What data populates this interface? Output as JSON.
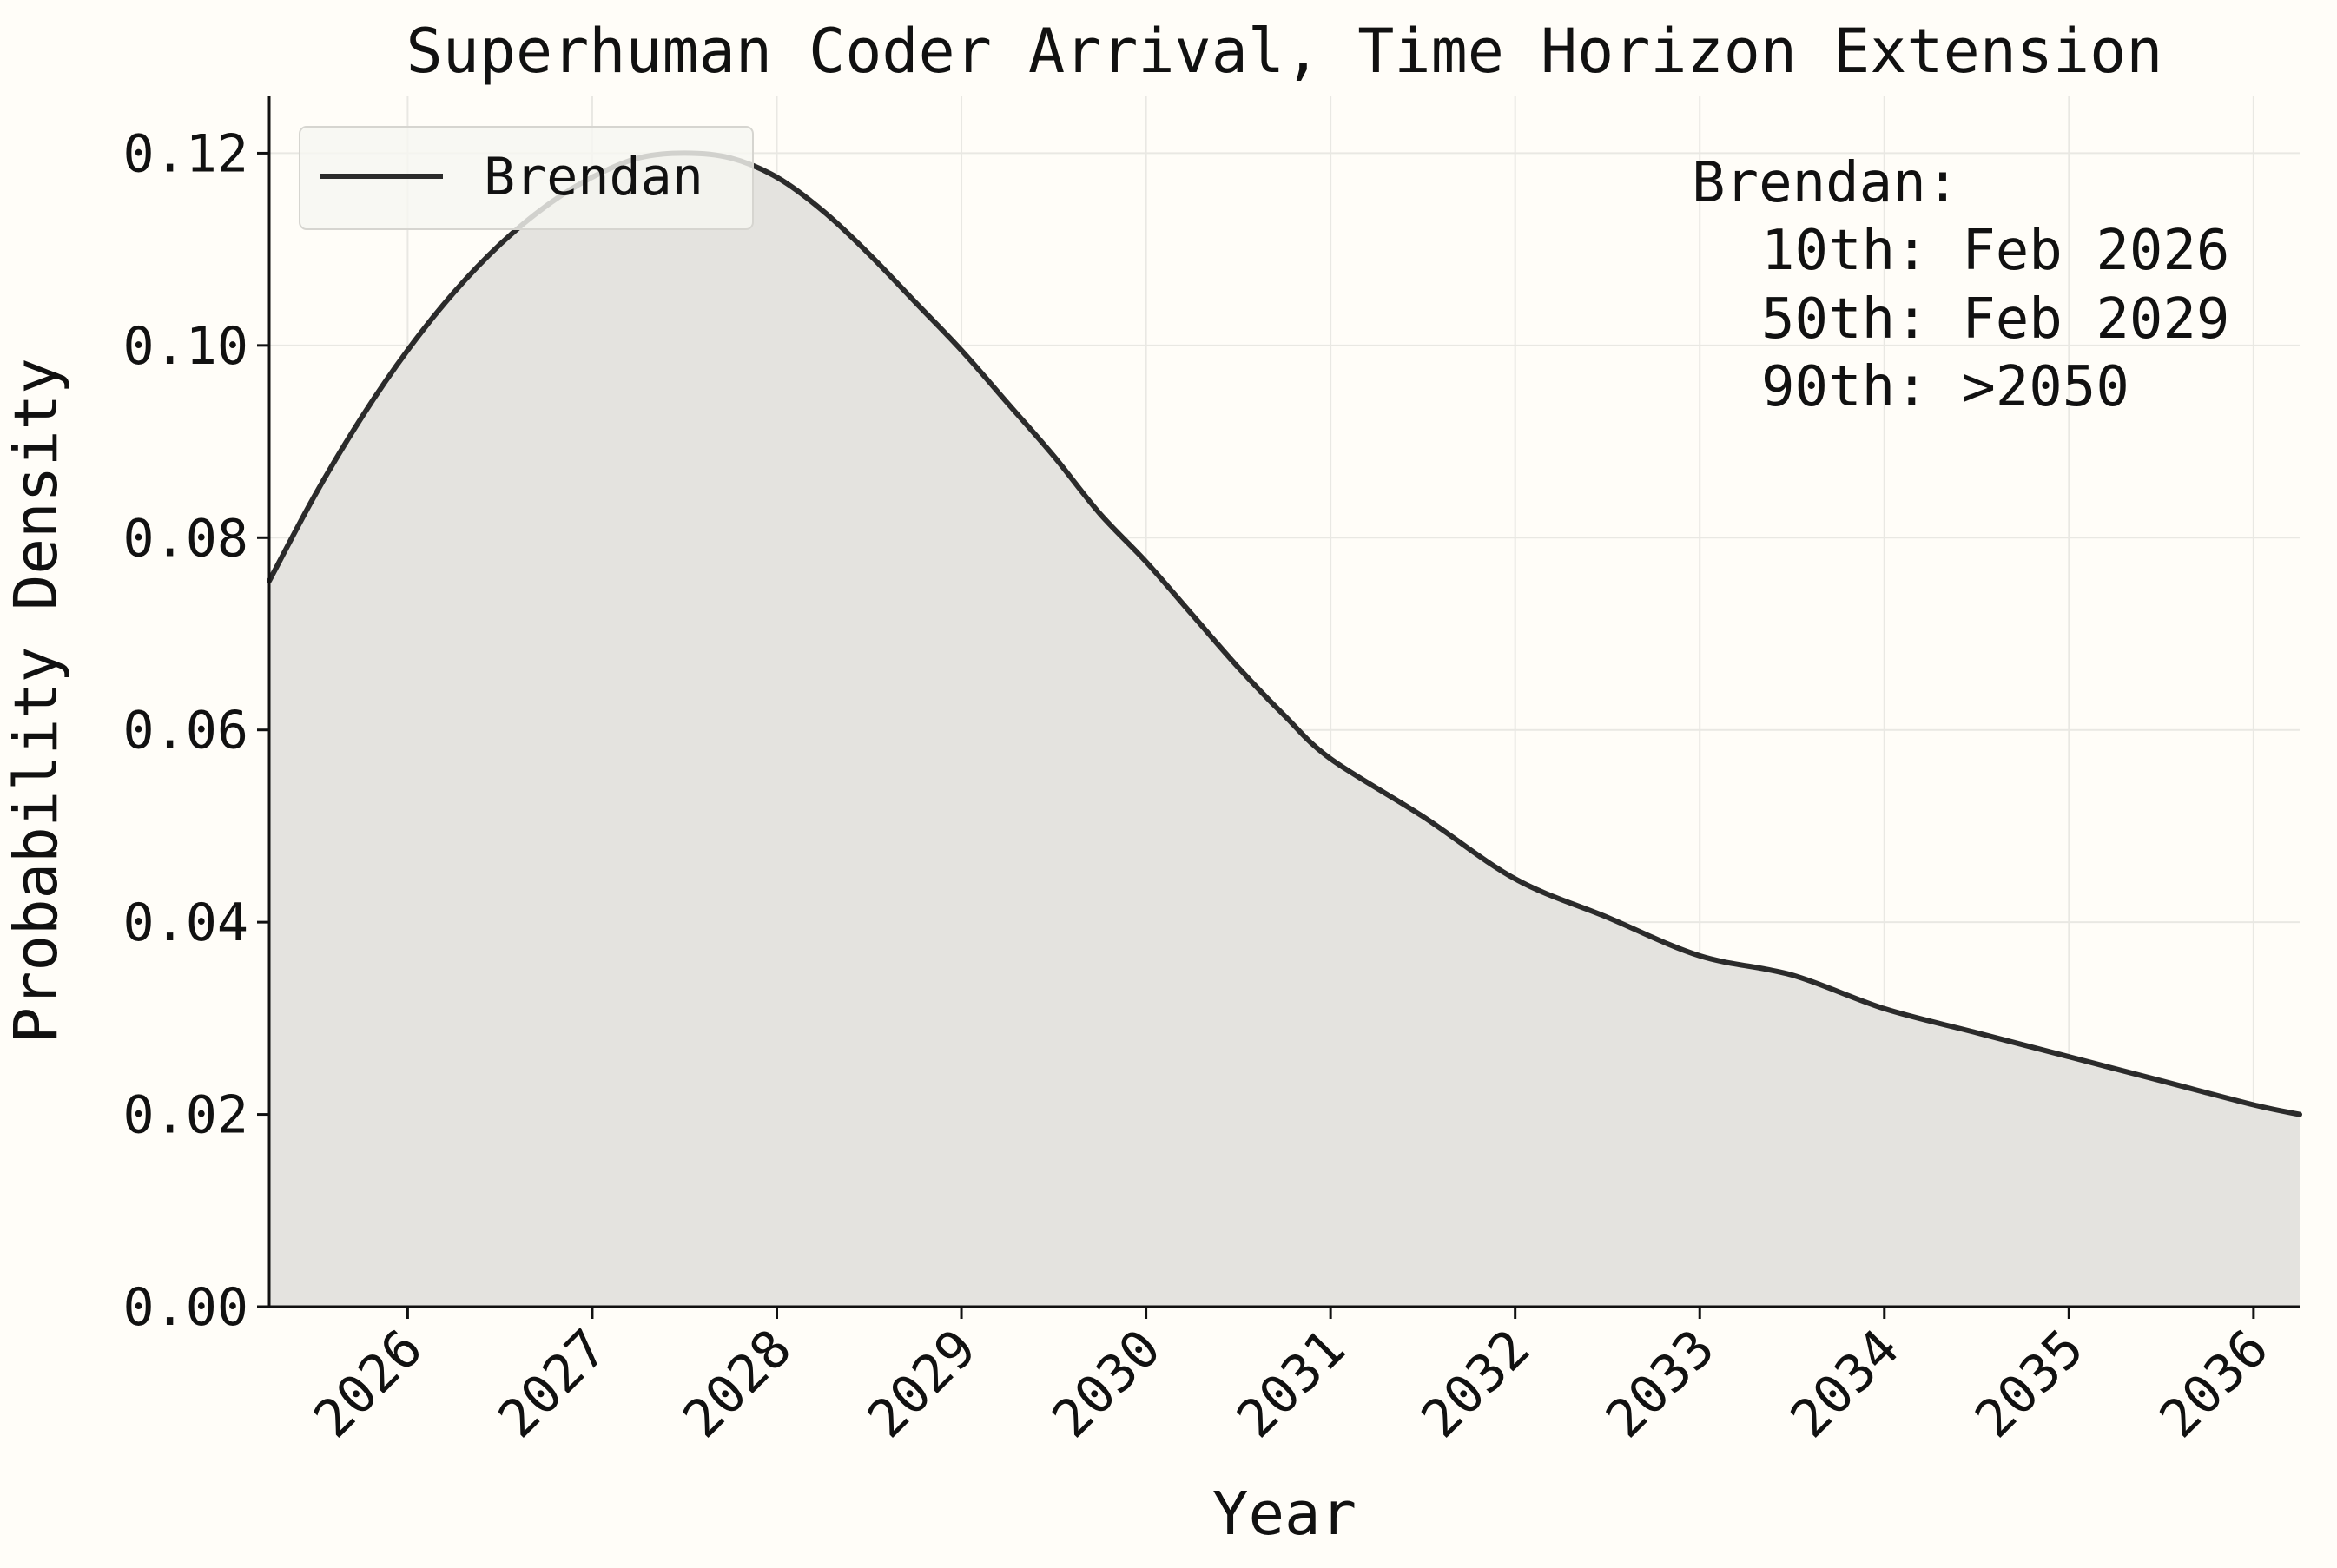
{
  "chart_data": {
    "type": "area",
    "title": "Superhuman Coder Arrival, Time Horizon Extension",
    "xlabel": "Year",
    "ylabel": "Probability Density",
    "xlim": [
      2025.25,
      2036.25
    ],
    "ylim": [
      0.0,
      0.126
    ],
    "x_ticks": [
      "2026",
      "2027",
      "2028",
      "2029",
      "2030",
      "2031",
      "2032",
      "2033",
      "2034",
      "2035",
      "2036"
    ],
    "y_ticks": [
      "0.00",
      "0.02",
      "0.04",
      "0.06",
      "0.08",
      "0.10",
      "0.12"
    ],
    "grid": true,
    "legend_position": "top-left",
    "colors": {
      "line": "#2b2b2b",
      "fill": "#e4e3df",
      "background": "#fffdf8",
      "grid": "#e9e8e3"
    },
    "series": [
      {
        "name": "Brendan",
        "x": [
          2025.25,
          2025.5,
          2025.75,
          2026.0,
          2026.25,
          2026.5,
          2026.75,
          2027.0,
          2027.25,
          2027.5,
          2027.75,
          2028.0,
          2028.25,
          2028.5,
          2028.75,
          2029.0,
          2029.25,
          2029.5,
          2029.75,
          2030.0,
          2030.25,
          2030.5,
          2030.75,
          2031.0,
          2031.5,
          2032.0,
          2032.5,
          2033.0,
          2033.5,
          2034.0,
          2034.5,
          2035.0,
          2035.5,
          2036.0,
          2036.25
        ],
        "y": [
          0.0755,
          0.0845,
          0.0925,
          0.0995,
          0.1055,
          0.1105,
          0.1145,
          0.1175,
          0.1195,
          0.12,
          0.1195,
          0.1175,
          0.114,
          0.1095,
          0.1045,
          0.0995,
          0.094,
          0.0885,
          0.0825,
          0.0775,
          0.072,
          0.0665,
          0.0615,
          0.057,
          0.051,
          0.0445,
          0.0405,
          0.0365,
          0.0345,
          0.031,
          0.0285,
          0.026,
          0.0235,
          0.021,
          0.02
        ]
      }
    ],
    "annotation": {
      "header": "Brendan:",
      "lines": [
        "10th: Feb 2026",
        "50th: Feb 2029",
        "90th: >2050"
      ]
    }
  }
}
